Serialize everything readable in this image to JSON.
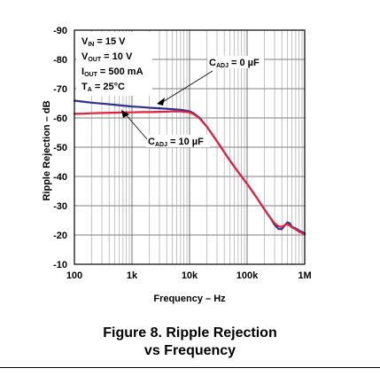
{
  "figure": {
    "caption_line1": "Figure 8. Ripple Rejection",
    "caption_line2": "vs Frequency"
  },
  "conditions": [
    {
      "main": "V",
      "sub": "IN",
      "rest": " = 15 V"
    },
    {
      "main": "V",
      "sub": "OUT",
      "rest": " = 10 V"
    },
    {
      "main": "I",
      "sub": "OUT",
      "rest": " = 500 mA"
    },
    {
      "main": "T",
      "sub": "A",
      "rest": " = 25°C"
    }
  ],
  "annotations": [
    {
      "main": "C",
      "sub": "ADJ",
      "rest": " = 0 µF"
    },
    {
      "main": "C",
      "sub": "ADJ",
      "rest": " = 10 µF"
    }
  ],
  "chart_data": {
    "type": "line",
    "title": "",
    "xlabel": "Frequency – Hz",
    "ylabel": "Ripple Rejection – dB",
    "x_scale": "log",
    "xlim": [
      100,
      1000000
    ],
    "ylim": [
      -90,
      -10
    ],
    "x_ticks": [
      100,
      1000,
      10000,
      100000,
      1000000
    ],
    "x_tick_labels": [
      "100",
      "1k",
      "10k",
      "100k",
      "1M"
    ],
    "y_ticks": [
      -90,
      -80,
      -70,
      -60,
      -50,
      -40,
      -30,
      -20,
      -10
    ],
    "y_tick_labels": [
      "-90",
      "-80",
      "-70",
      "-60",
      "-50",
      "-40",
      "-30",
      "-20",
      "-10"
    ],
    "y_axis_note": "axis inverted: -90 at top, -10 at bottom",
    "grid": true,
    "series": [
      {
        "name": "C_ADJ = 0 µF",
        "color": "#2e3192",
        "points": [
          [
            100,
            -65.9
          ],
          [
            150,
            -65.5
          ],
          [
            200,
            -65.2
          ],
          [
            300,
            -64.9
          ],
          [
            500,
            -64.5
          ],
          [
            700,
            -64.2
          ],
          [
            1000,
            -63.9
          ],
          [
            1500,
            -63.7
          ],
          [
            2000,
            -63.5
          ],
          [
            3000,
            -63.3
          ],
          [
            5000,
            -63.0
          ],
          [
            7000,
            -62.8
          ],
          [
            10000,
            -62.3
          ],
          [
            12000,
            -61.5
          ],
          [
            15000,
            -60.0
          ],
          [
            20000,
            -57.0
          ],
          [
            30000,
            -52.0
          ],
          [
            50000,
            -45.5
          ],
          [
            70000,
            -41.5
          ],
          [
            100000,
            -37.5
          ],
          [
            150000,
            -32.5
          ],
          [
            200000,
            -28.7
          ],
          [
            250000,
            -26.0
          ],
          [
            300000,
            -23.5
          ],
          [
            350000,
            -22.1
          ],
          [
            400000,
            -22.0
          ],
          [
            450000,
            -23.3
          ],
          [
            500000,
            -24.3
          ],
          [
            550000,
            -24.0
          ],
          [
            600000,
            -22.8
          ],
          [
            700000,
            -22.2
          ],
          [
            800000,
            -21.5
          ],
          [
            1000000,
            -20.6
          ]
        ]
      },
      {
        "name": "C_ADJ = 10 µF",
        "color": "#e8203a",
        "points": [
          [
            100,
            -61.4
          ],
          [
            150,
            -61.5
          ],
          [
            200,
            -61.6
          ],
          [
            300,
            -61.7
          ],
          [
            500,
            -61.8
          ],
          [
            700,
            -61.9
          ],
          [
            1000,
            -61.9
          ],
          [
            1500,
            -62.0
          ],
          [
            2000,
            -62.0
          ],
          [
            3000,
            -62.1
          ],
          [
            5000,
            -62.2
          ],
          [
            7000,
            -62.2
          ],
          [
            10000,
            -61.9
          ],
          [
            12000,
            -61.2
          ],
          [
            15000,
            -59.8
          ],
          [
            20000,
            -57.0
          ],
          [
            30000,
            -52.0
          ],
          [
            50000,
            -45.5
          ],
          [
            70000,
            -41.5
          ],
          [
            100000,
            -37.5
          ],
          [
            150000,
            -32.5
          ],
          [
            200000,
            -28.7
          ],
          [
            250000,
            -26.0
          ],
          [
            300000,
            -24.0
          ],
          [
            350000,
            -23.0
          ],
          [
            400000,
            -22.8
          ],
          [
            450000,
            -23.4
          ],
          [
            500000,
            -23.7
          ],
          [
            550000,
            -23.2
          ],
          [
            600000,
            -22.6
          ],
          [
            700000,
            -21.9
          ],
          [
            800000,
            -21.1
          ],
          [
            1000000,
            -20.2
          ]
        ]
      }
    ]
  }
}
